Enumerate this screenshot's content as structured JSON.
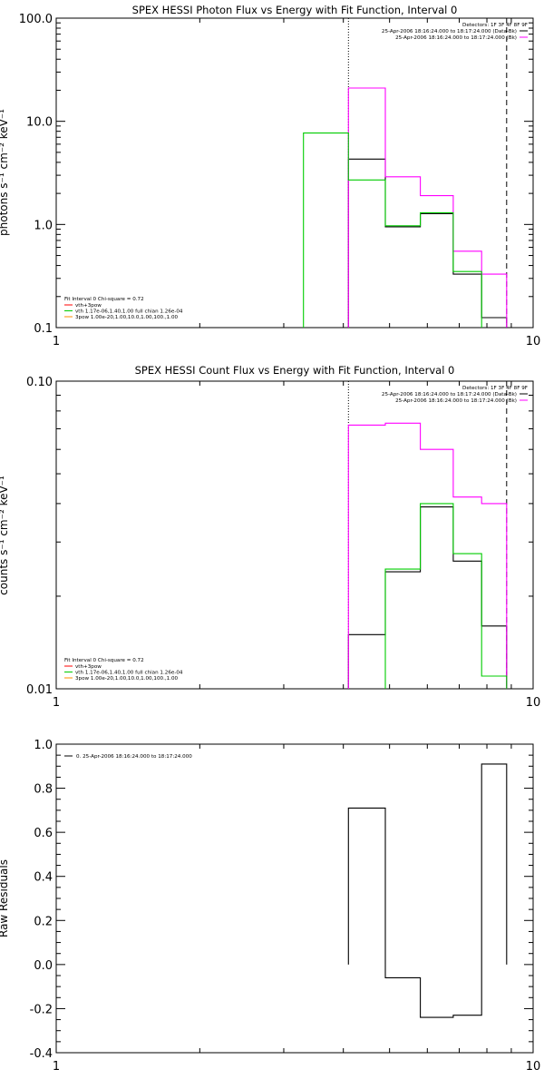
{
  "chart_data": [
    {
      "type": "line",
      "title": "SPEX HESSI Photon Flux vs Energy with Fit Function, Interval 0",
      "ylabel": "photons s⁻¹ cm⁻² keV⁻¹",
      "xlabel": "",
      "xscale": "log",
      "yscale": "log",
      "xlim": [
        1,
        10
      ],
      "ylim": [
        0.1,
        100
      ],
      "x_ticks": [
        "1",
        "10"
      ],
      "y_ticks": [
        "0.1",
        "1.0",
        "10.0",
        "100.0"
      ],
      "vlines": [
        {
          "x": 4.1,
          "style": "dotted"
        },
        {
          "x": 8.8,
          "style": "dashed"
        }
      ],
      "bin_edges": [
        3.3,
        4.1,
        4.9,
        5.8,
        6.8,
        7.8,
        8.8
      ],
      "series": [
        {
          "name": "25-Apr-2006 18:16:24.000 to 18:17:24.000 (Data-Bk)",
          "color": "#000000",
          "values": [
            null,
            4.3,
            0.95,
            1.27,
            0.33,
            0.125
          ]
        },
        {
          "name": "25-Apr-2006 18:16:24.000 to 18:17:24.000 (Bk)",
          "color": "#ff00ff",
          "values": [
            null,
            21,
            2.9,
            1.9,
            0.55,
            0.33
          ]
        },
        {
          "name": "vth 1.17e-06,1.40,1.00 full chian 1.26e-04",
          "color": "#00cc00",
          "values": [
            7.7,
            2.7,
            0.97,
            1.3,
            0.35,
            null
          ]
        }
      ],
      "legend_top": {
        "position": "top-right",
        "header": "Detectors: 1F 3F 4F 8F 9F",
        "entries": [
          {
            "text": "25-Apr-2006 18:16:24.000 to 18:17:24.000 (Data-Bk)",
            "color": "#000000"
          },
          {
            "text": "25-Apr-2006 18:16:24.000 to 18:17:24.000 (Bk)",
            "color": "#ff00ff"
          }
        ]
      },
      "legend_bottom": {
        "position": "bottom-left",
        "header": "Fit Interval 0   Chi-square = 0.72",
        "entries": [
          {
            "text": "vth+3pow",
            "color": "#ff0000"
          },
          {
            "text": "vth 1.17e-06,1.40,1.00  full chian 1.26e-04",
            "color": "#00cc00"
          },
          {
            "text": "3pow 1.00e-20,1.00,10.0,1.00,100.,1.00",
            "color": "#ff8c00"
          }
        ]
      }
    },
    {
      "type": "line",
      "title": "SPEX HESSI Count Flux vs Energy with Fit Function, Interval 0",
      "ylabel": "counts s⁻¹ cm⁻² keV⁻¹",
      "xlabel": "",
      "xscale": "log",
      "yscale": "log",
      "xlim": [
        1,
        10
      ],
      "ylim": [
        0.01,
        0.1
      ],
      "x_ticks": [
        "1",
        "10"
      ],
      "y_ticks": [
        "0.01",
        "0.10"
      ],
      "vlines": [
        {
          "x": 4.1,
          "style": "dotted"
        },
        {
          "x": 8.8,
          "style": "dashed"
        }
      ],
      "bin_edges": [
        4.1,
        4.9,
        5.8,
        6.8,
        7.8,
        8.8
      ],
      "series": [
        {
          "name": "25-Apr-2006 18:16:24.000 to 18:17:24.000 (Data-Bk)",
          "color": "#000000",
          "values": [
            0.015,
            0.024,
            0.039,
            0.026,
            0.016
          ]
        },
        {
          "name": "25-Apr-2006 18:16:24.000 to 18:17:24.000 (Bk)",
          "color": "#ff00ff",
          "values": [
            0.072,
            0.073,
            0.06,
            0.042,
            0.04
          ]
        },
        {
          "name": "vth 1.17e-06,1.40,1.00 full chian 1.26e-04",
          "color": "#00cc00",
          "values": [
            null,
            0.0245,
            0.04,
            0.0275,
            0.011
          ]
        }
      ],
      "legend_top": {
        "position": "top-right",
        "header": "Detectors: 1F 3F 4F 8F 9F",
        "entries": [
          {
            "text": "25-Apr-2006 18:16:24.000 to 18:17:24.000 (Data-Bk)",
            "color": "#000000"
          },
          {
            "text": "25-Apr-2006 18:16:24.000 to 18:17:24.000 (Bk)",
            "color": "#ff00ff"
          }
        ]
      },
      "legend_bottom": {
        "position": "bottom-left",
        "header": "Fit Interval 0   Chi-square = 0.72",
        "entries": [
          {
            "text": "vth+3pow",
            "color": "#ff0000"
          },
          {
            "text": "vth 1.17e-06,1.40,1.00  full chian 1.26e-04",
            "color": "#00cc00"
          },
          {
            "text": "3pow 1.00e-20,1.00,10.0,1.00,100.,1.00",
            "color": "#ff8c00"
          }
        ]
      }
    },
    {
      "type": "line",
      "title": "",
      "ylabel": "Raw Residuals",
      "xlabel": "",
      "xscale": "log",
      "yscale": "linear",
      "xlim": [
        1,
        10
      ],
      "ylim": [
        -0.4,
        1.0
      ],
      "x_ticks": [
        "1",
        "10"
      ],
      "y_ticks": [
        "-0.4",
        "-0.2",
        "0.0",
        "0.2",
        "0.4",
        "0.6",
        "0.8",
        "1.0"
      ],
      "bin_edges": [
        4.1,
        4.9,
        5.8,
        6.8,
        7.8,
        8.8
      ],
      "series": [
        {
          "name": "0. 25-Apr-2006 18:16:24.000 to 18:17:24.000",
          "color": "#000000",
          "values": [
            0.71,
            -0.06,
            -0.24,
            -0.23,
            0.91
          ]
        }
      ],
      "legend_top": {
        "position": "top-left",
        "header": "",
        "entries": [
          {
            "text": "0. 25-Apr-2006 18:16:24.000 to 18:17:24.000",
            "color": "#000000"
          }
        ]
      }
    }
  ]
}
